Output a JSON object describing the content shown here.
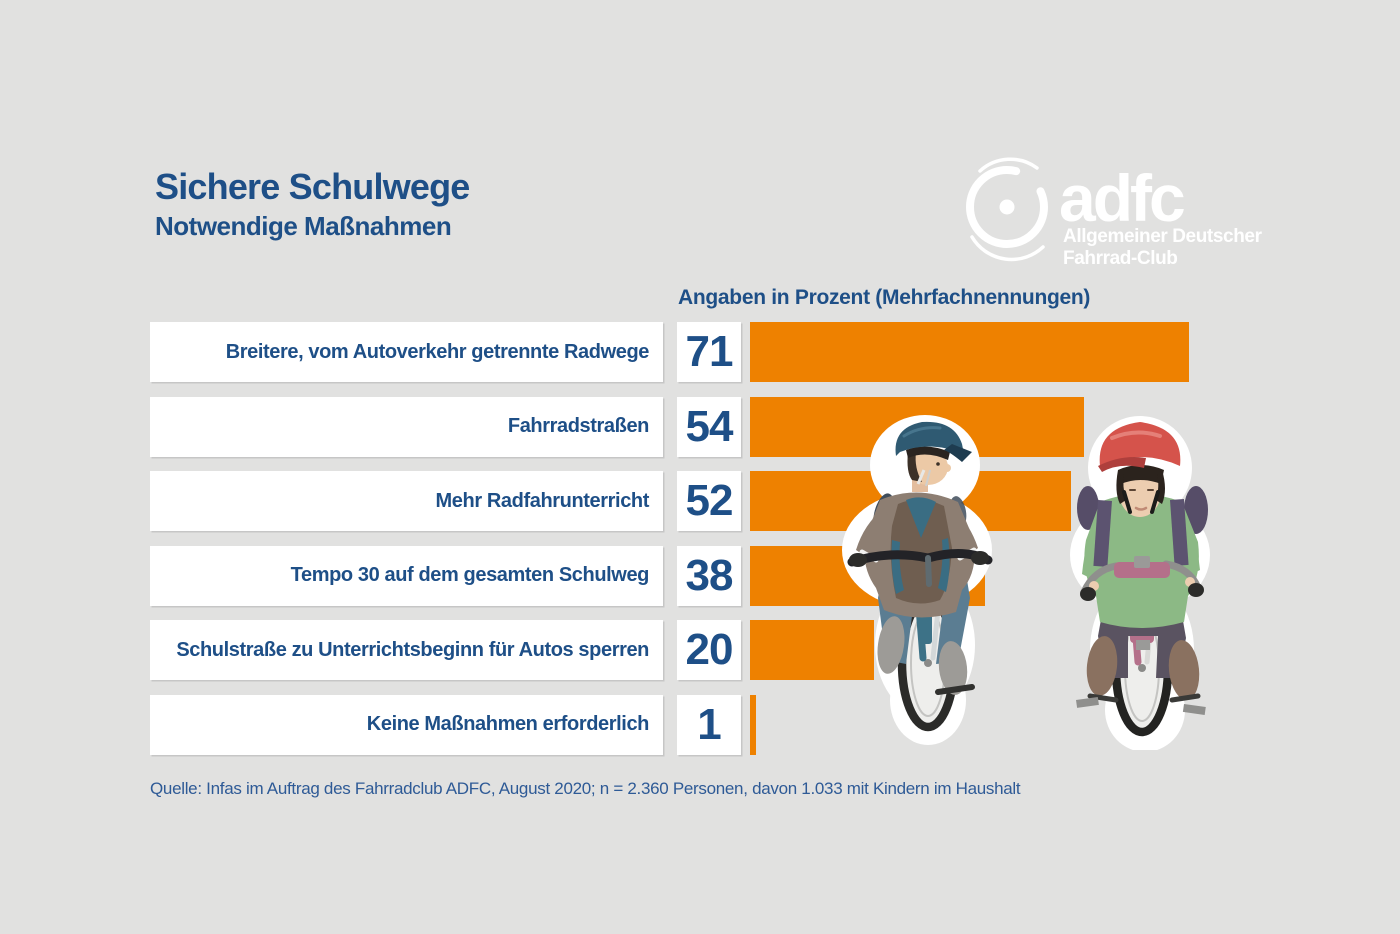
{
  "title": "Sichere Schulwege",
  "subtitle": "Notwendige Maßnahmen",
  "logo": {
    "brand": "adfc",
    "line1": "Allgemeiner Deutscher",
    "line2": "Fahrrad-Club"
  },
  "chart_data": {
    "type": "bar",
    "orientation": "horizontal",
    "title": "Angaben in Prozent (Mehrfachnennungen)",
    "unit": "%",
    "categories": [
      "Breitere, vom Autoverkehr getrennte Radwege",
      "Fahrradstraßen",
      "Mehr Radfahrunterricht",
      "Tempo 30 auf dem gesamten Schulweg",
      "Schulstraße zu Unterrichtsbeginn für Autos sperren",
      "Keine Maßnahmen erforderlich"
    ],
    "values": [
      71,
      54,
      52,
      38,
      20,
      1
    ],
    "xlim": [
      0,
      100
    ],
    "grid": false,
    "legend": false,
    "bar_color": "#EE8100",
    "label_color": "#1E4F87"
  },
  "source": "Quelle: Infas im Auftrag des Fahrradclub ADFC, August 2020; n = 2.360 Personen, davon 1.033 mit Kindern im Haushalt",
  "illustration": {
    "alt": "Zwei Kinder mit Helm auf Fahrrädern"
  },
  "colors": {
    "background": "#E1E1E0",
    "accent_orange": "#EE8100",
    "brand_blue": "#1E4F87",
    "box_white": "#FFFFFF"
  }
}
